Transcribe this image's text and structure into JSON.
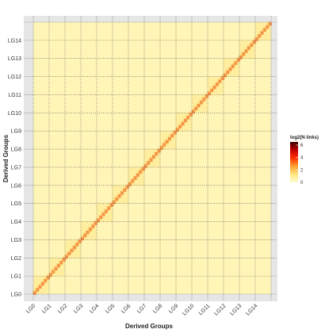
{
  "chart_data": {
    "type": "heatmap",
    "xlabel": "Derived Groups",
    "ylabel": "Derived Groups",
    "groups": [
      "LG0",
      "LG1",
      "LG2",
      "LG3",
      "LG4",
      "LG5",
      "LG6",
      "LG7",
      "LG8",
      "LG9",
      "LG10",
      "LG11",
      "LG12",
      "LG13",
      "LG14"
    ],
    "x_ticks": [
      "LG0",
      "LG1",
      "LG2",
      "LG3",
      "LG4",
      "LG5",
      "LG6",
      "LG7",
      "LG8",
      "LG9",
      "LG10",
      "LG11",
      "LG12",
      "LG13",
      "LG14"
    ],
    "y_ticks": [
      "LG0",
      "LG1",
      "LG2",
      "LG3",
      "LG4",
      "LG5",
      "LG6",
      "LG7",
      "LG8",
      "LG9",
      "LG10",
      "LG11",
      "LG12",
      "LG13",
      "LG14"
    ],
    "legend": {
      "title": "log2(N links)",
      "ticks": [
        "6",
        "4",
        "2",
        "0"
      ],
      "values": [
        6,
        4,
        2,
        0
      ],
      "range": [
        0,
        6.5
      ],
      "colors": [
        "#fffbd0",
        "#ffe680",
        "#ffa030",
        "#ff3000",
        "#c00000",
        "#400000"
      ]
    },
    "background_value": 0.4,
    "diagonal_value": 4.5,
    "grid": true,
    "legend_position": "right"
  }
}
